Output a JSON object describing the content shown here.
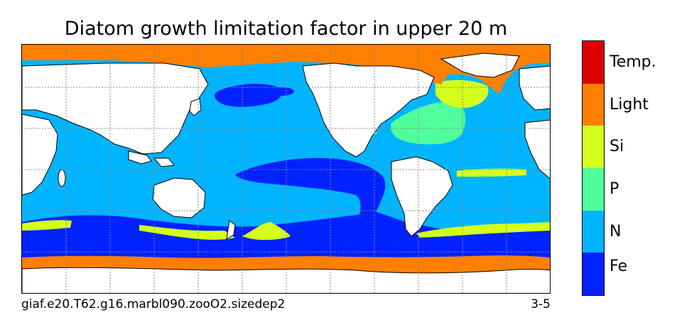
{
  "title": "Diatom growth limitation factor in upper 20 m",
  "caption_left": "giaf.e20.T62.g16.marbl090.zooO2.sizedep2",
  "caption_right": "3-5",
  "legend": [
    {
      "label": "Fe",
      "color": "#0022ff"
    },
    {
      "label": "N",
      "color": "#00b4ff"
    },
    {
      "label": "P",
      "color": "#50ff9c"
    },
    {
      "label": "Si",
      "color": "#d4ff1c"
    },
    {
      "label": "Light",
      "color": "#ff8000"
    },
    {
      "label": "Temp.",
      "color": "#dd0000"
    }
  ],
  "colors": {
    "land": "#ffffff",
    "coast": "#000000",
    "grid": "#888888"
  }
}
